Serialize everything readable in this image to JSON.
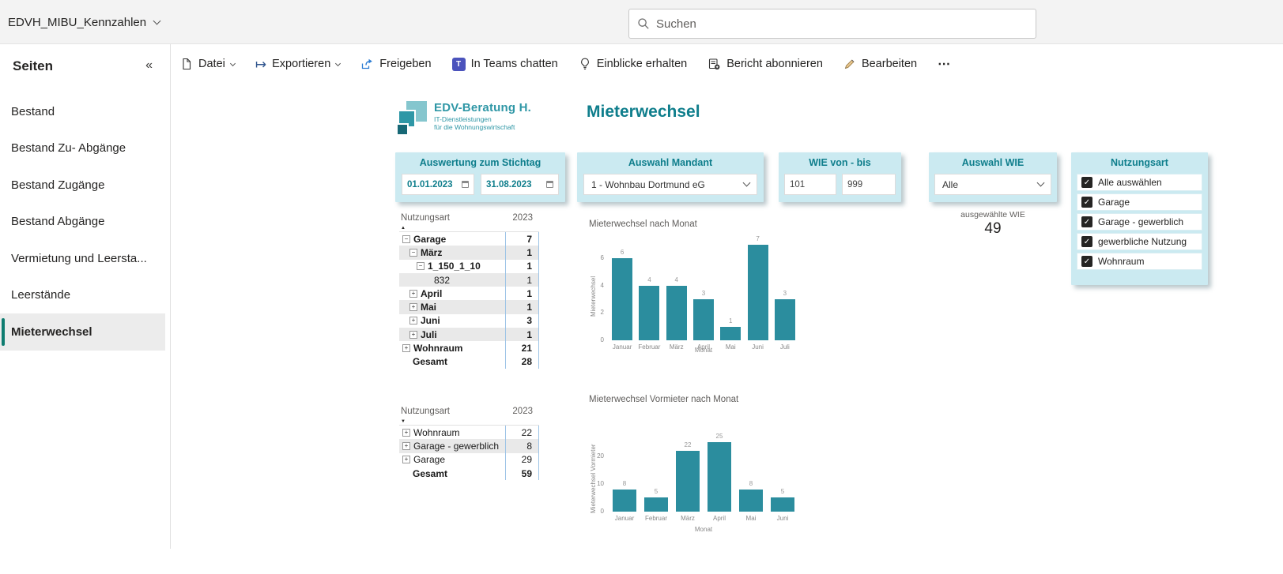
{
  "titlebar": {
    "report_name": "EDVH_MIBU_Kennzahlen",
    "search_placeholder": "Suchen"
  },
  "toolbar": {
    "items": [
      {
        "label": "Datei",
        "has_chevron": true
      },
      {
        "label": "Exportieren",
        "has_chevron": true
      },
      {
        "label": "Freigeben",
        "has_chevron": false
      },
      {
        "label": "In Teams chatten",
        "has_chevron": false
      },
      {
        "label": "Einblicke erhalten",
        "has_chevron": false
      },
      {
        "label": "Bericht abonnieren",
        "has_chevron": false
      },
      {
        "label": "Bearbeiten",
        "has_chevron": false
      }
    ],
    "more_label": "⋯"
  },
  "sidebar": {
    "title": "Seiten",
    "collapse_icon": "«",
    "items": [
      {
        "label": "Bestand",
        "selected": false
      },
      {
        "label": "Bestand Zu- Abgänge",
        "selected": false
      },
      {
        "label": "Bestand Zugänge",
        "selected": false
      },
      {
        "label": "Bestand Abgänge",
        "selected": false
      },
      {
        "label": "Vermietung und Leersta...",
        "selected": false
      },
      {
        "label": "Leerstände",
        "selected": false
      },
      {
        "label": "Mieterwechsel",
        "selected": true
      }
    ]
  },
  "canvas": {
    "logo": {
      "line1": "EDV-Beratung H.",
      "line2": "IT-Dienstleistungen",
      "line3": "für die Wohnungswirtschaft"
    },
    "page_title": "Mieterwechsel",
    "stichtag": {
      "title": "Auswertung zum Stichtag",
      "from": "01.01.2023",
      "to": "31.08.2023"
    },
    "mandant": {
      "title": "Auswahl Mandant",
      "value": "1 - Wohnbau Dortmund eG"
    },
    "wie_range": {
      "title": "WIE von - bis",
      "from": "101",
      "to": "999"
    },
    "wie_select": {
      "title": "Auswahl WIE",
      "value": "Alle"
    },
    "nutzungsart": {
      "title": "Nutzungsart",
      "options": [
        {
          "label": "Alle auswählen",
          "checked": true
        },
        {
          "label": "Garage",
          "checked": true
        },
        {
          "label": "Garage - gewerblich",
          "checked": true
        },
        {
          "label": "gewerbliche Nutzung",
          "checked": true
        },
        {
          "label": "Wohnraum",
          "checked": true
        }
      ]
    },
    "kpi": {
      "label": "ausgewählte WIE",
      "value": "49"
    },
    "matrix1": {
      "col1": "Nutzungsart",
      "col2": "2023",
      "sort_indicator": "▲",
      "rows": [
        {
          "label": "Garage",
          "value": "7",
          "indent": 0,
          "expand": "-",
          "bold": true,
          "shaded": false
        },
        {
          "label": "März",
          "value": "1",
          "indent": 1,
          "expand": "-",
          "bold": true,
          "shaded": true
        },
        {
          "label": "1_150_1_10",
          "value": "1",
          "indent": 2,
          "expand": "-",
          "bold": true,
          "shaded": false
        },
        {
          "label": "832",
          "value": "1",
          "indent": 3,
          "expand": "",
          "bold": false,
          "shaded": true
        },
        {
          "label": "April",
          "value": "1",
          "indent": 1,
          "expand": "+",
          "bold": true,
          "shaded": false
        },
        {
          "label": "Mai",
          "value": "1",
          "indent": 1,
          "expand": "+",
          "bold": true,
          "shaded": true
        },
        {
          "label": "Juni",
          "value": "3",
          "indent": 1,
          "expand": "+",
          "bold": true,
          "shaded": false
        },
        {
          "label": "Juli",
          "value": "1",
          "indent": 1,
          "expand": "+",
          "bold": true,
          "shaded": true
        },
        {
          "label": "Wohnraum",
          "value": "21",
          "indent": 0,
          "expand": "+",
          "bold": true,
          "shaded": false
        },
        {
          "label": "Gesamt",
          "value": "28",
          "indent": 0,
          "expand": "",
          "bold": true,
          "shaded": false
        }
      ]
    },
    "matrix2": {
      "col1": "Nutzungsart",
      "col2": "2023",
      "sort_indicator": "▼",
      "rows": [
        {
          "label": "Wohnraum",
          "value": "22",
          "indent": 0,
          "expand": "+",
          "bold": false,
          "shaded": false
        },
        {
          "label": "Garage - gewerblich",
          "value": "8",
          "indent": 0,
          "expand": "+",
          "bold": false,
          "shaded": true
        },
        {
          "label": "Garage",
          "value": "29",
          "indent": 0,
          "expand": "+",
          "bold": false,
          "shaded": false
        },
        {
          "label": "Gesamt",
          "value": "59",
          "indent": 0,
          "expand": "",
          "bold": true,
          "shaded": false
        }
      ]
    }
  },
  "chart_data": [
    {
      "type": "bar",
      "title": "Mieterwechsel nach Monat",
      "categories": [
        "Januar",
        "Februar",
        "März",
        "April",
        "Mai",
        "Juni",
        "Juli"
      ],
      "values": [
        6,
        4,
        4,
        3,
        1,
        7,
        3
      ],
      "xlabel": "Monat",
      "ylabel": "Mieterwechsel",
      "ylim": [
        0,
        7
      ],
      "yticks": [
        0,
        2,
        4,
        6
      ],
      "grid": false,
      "legend": "none",
      "bar_color": "#2b8d9e"
    },
    {
      "type": "bar",
      "title": "Mieterwechsel Vormieter nach Monat",
      "categories": [
        "Januar",
        "Februar",
        "März",
        "April",
        "Mai",
        "Juni"
      ],
      "values": [
        8,
        5,
        22,
        25,
        8,
        5
      ],
      "xlabel": "Monat",
      "ylabel": "Mieterwechsel Vormieter",
      "ylim": [
        0,
        25
      ],
      "yticks": [
        0,
        10,
        20
      ],
      "grid": false,
      "legend": "none",
      "bar_color": "#2b8d9e"
    }
  ]
}
